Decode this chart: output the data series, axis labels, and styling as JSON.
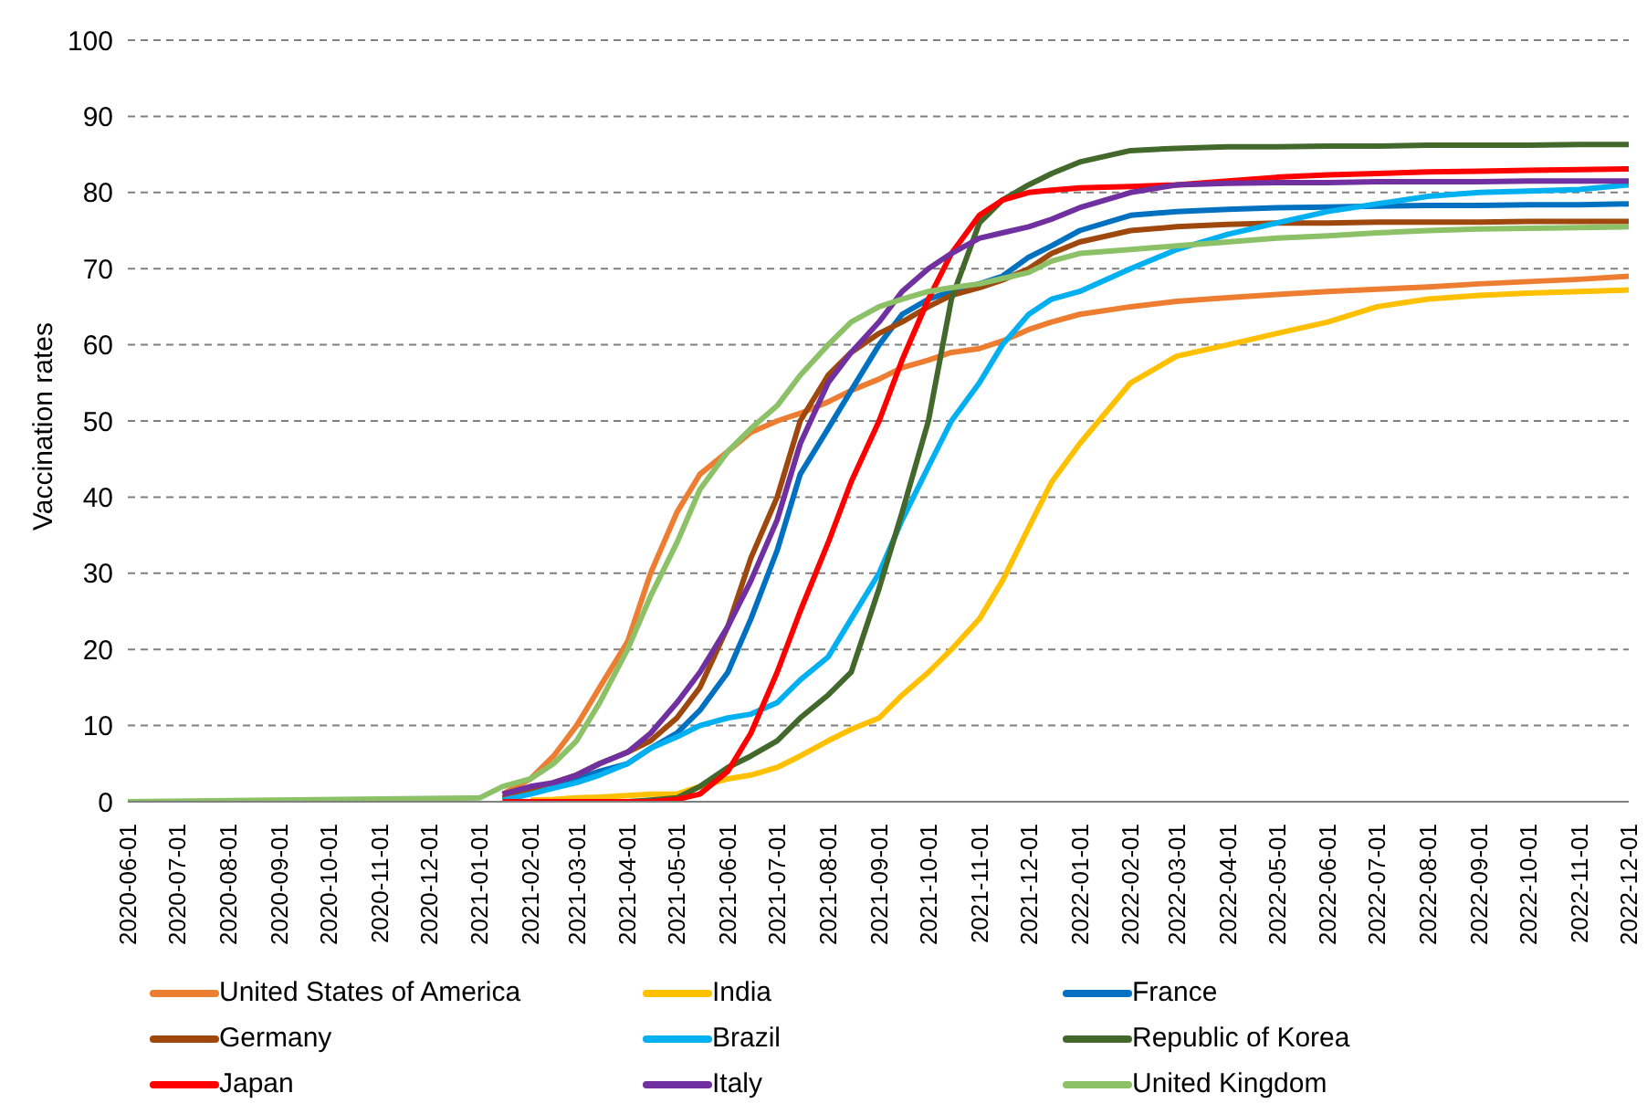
{
  "chart_data": {
    "type": "line",
    "ylabel": "Vaccination rates",
    "x": [
      "2020-06-01",
      "2021-01-01",
      "2021-01-15",
      "2021-02-01",
      "2021-02-15",
      "2021-03-01",
      "2021-03-15",
      "2021-04-01",
      "2021-04-15",
      "2021-05-01",
      "2021-05-15",
      "2021-06-01",
      "2021-06-15",
      "2021-07-01",
      "2021-07-15",
      "2021-08-01",
      "2021-08-15",
      "2021-09-01",
      "2021-09-15",
      "2021-10-01",
      "2021-10-15",
      "2021-11-01",
      "2021-11-15",
      "2021-12-01",
      "2021-12-15",
      "2022-01-01",
      "2022-02-01",
      "2022-03-01",
      "2022-04-01",
      "2022-05-01",
      "2022-06-01",
      "2022-07-01",
      "2022-08-01",
      "2022-09-01",
      "2022-10-01",
      "2022-11-01",
      "2022-12-01"
    ],
    "series": [
      {
        "name": "United States of America",
        "color": "#ed7d31",
        "values": [
          null,
          null,
          1,
          3,
          6,
          10,
          15,
          21,
          30,
          38,
          43,
          46,
          48.5,
          50,
          51,
          52.5,
          54,
          55.5,
          57,
          58,
          59,
          59.5,
          60.5,
          62,
          63,
          64,
          65,
          65.7,
          66.2,
          66.6,
          67,
          67.3,
          67.6,
          68,
          68.3,
          68.6,
          69
        ]
      },
      {
        "name": "India",
        "color": "#ffc000",
        "values": [
          null,
          null,
          null,
          0.2,
          0.3,
          0.5,
          0.6,
          0.8,
          1,
          1,
          2,
          3,
          3.5,
          4.5,
          6,
          8,
          9.5,
          11,
          14,
          17,
          20,
          24,
          29,
          36,
          42,
          47,
          55,
          58.5,
          60,
          61.5,
          63,
          65,
          66,
          66.5,
          66.8,
          67,
          67.2
        ]
      },
      {
        "name": "France",
        "color": "#0070c0",
        "values": [
          null,
          null,
          0.5,
          1.5,
          2,
          3,
          4,
          5,
          7,
          9,
          12,
          17,
          24,
          33,
          43,
          49,
          54,
          60,
          64,
          66,
          67,
          68,
          69,
          71.5,
          73,
          75,
          77,
          77.5,
          77.8,
          78,
          78.1,
          78.2,
          78.3,
          78.3,
          78.4,
          78.4,
          78.5
        ]
      },
      {
        "name": "Germany",
        "color": "#9e480e",
        "values": [
          null,
          null,
          0.5,
          1.5,
          2.5,
          3.5,
          5,
          6.5,
          8,
          11,
          15,
          23,
          32,
          40,
          50,
          56,
          59,
          61.5,
          63,
          65,
          66.5,
          67.5,
          68.5,
          70,
          72,
          73.5,
          75,
          75.5,
          75.8,
          76,
          76,
          76.1,
          76.1,
          76.1,
          76.2,
          76.2,
          76.2
        ]
      },
      {
        "name": "Brazil",
        "color": "#00b0f0",
        "values": [
          null,
          null,
          0.2,
          1,
          1.8,
          2.5,
          3.5,
          5,
          7,
          8.5,
          10,
          11,
          11.5,
          13,
          16,
          19,
          24,
          30,
          37,
          44,
          50,
          55,
          60,
          64,
          66,
          67,
          70,
          72.5,
          74.5,
          76,
          77.5,
          78.5,
          79.5,
          80,
          80.2,
          80.4,
          81
        ]
      },
      {
        "name": "Republic of Korea",
        "color": "#43682b",
        "values": [
          null,
          null,
          null,
          null,
          null,
          null,
          null,
          0,
          0.2,
          0.5,
          2,
          4.5,
          6,
          8,
          11,
          14,
          17,
          28,
          38,
          50,
          66,
          76,
          79,
          81,
          82.5,
          84,
          85.5,
          85.8,
          86,
          86,
          86.1,
          86.1,
          86.2,
          86.2,
          86.2,
          86.3,
          86.3
        ]
      },
      {
        "name": "Japan",
        "color": "#ff0000",
        "values": [
          null,
          null,
          0,
          0,
          0,
          0,
          0,
          0,
          0,
          0.3,
          1,
          4,
          9,
          17,
          25,
          34,
          42,
          50,
          58,
          66,
          72,
          77,
          79,
          80,
          80.3,
          80.6,
          80.8,
          81,
          81.5,
          82,
          82.3,
          82.5,
          82.7,
          82.8,
          82.9,
          83,
          83.1
        ]
      },
      {
        "name": "Italy",
        "color": "#7030a0",
        "values": [
          null,
          null,
          1,
          2,
          2.5,
          3.5,
          5,
          6.5,
          9,
          13,
          17,
          23,
          29,
          37,
          47,
          55,
          59,
          63,
          67,
          70,
          72,
          74,
          74.7,
          75.5,
          76.5,
          78,
          80,
          81,
          81.2,
          81.3,
          81.3,
          81.4,
          81.4,
          81.4,
          81.5,
          81.5,
          81.5
        ]
      },
      {
        "name": "United Kingdom",
        "color": "#8cc168",
        "values": [
          0,
          0.5,
          2,
          3,
          5,
          8,
          13,
          20,
          27,
          34,
          41,
          46,
          49,
          52,
          56,
          60,
          63,
          65,
          66,
          67,
          67.5,
          68,
          68.7,
          69.5,
          71,
          72,
          72.5,
          73,
          73.5,
          74,
          74.3,
          74.7,
          75,
          75.2,
          75.3,
          75.4,
          75.5
        ]
      }
    ],
    "xlim": [
      "2020-06-01",
      "2022-12-01"
    ],
    "xticks": [
      "2020-06-01",
      "2020-07-01",
      "2020-08-01",
      "2020-09-01",
      "2020-10-01",
      "2020-11-01",
      "2020-12-01",
      "2021-01-01",
      "2021-02-01",
      "2021-03-01",
      "2021-04-01",
      "2021-05-01",
      "2021-06-01",
      "2021-07-01",
      "2021-08-01",
      "2021-09-01",
      "2021-10-01",
      "2021-11-01",
      "2021-12-01",
      "2022-01-01",
      "2022-02-01",
      "2022-03-01",
      "2022-04-01",
      "2022-05-01",
      "2022-06-01",
      "2022-07-01",
      "2022-08-01",
      "2022-09-01",
      "2022-10-01",
      "2022-11-01",
      "2022-12-01"
    ],
    "ylim": [
      0,
      100
    ],
    "yticks": [
      0,
      10,
      20,
      30,
      40,
      50,
      60,
      70,
      80,
      90,
      100
    ],
    "grid": "y",
    "legend": "bottom",
    "marker": "none",
    "line_style": "solid"
  }
}
